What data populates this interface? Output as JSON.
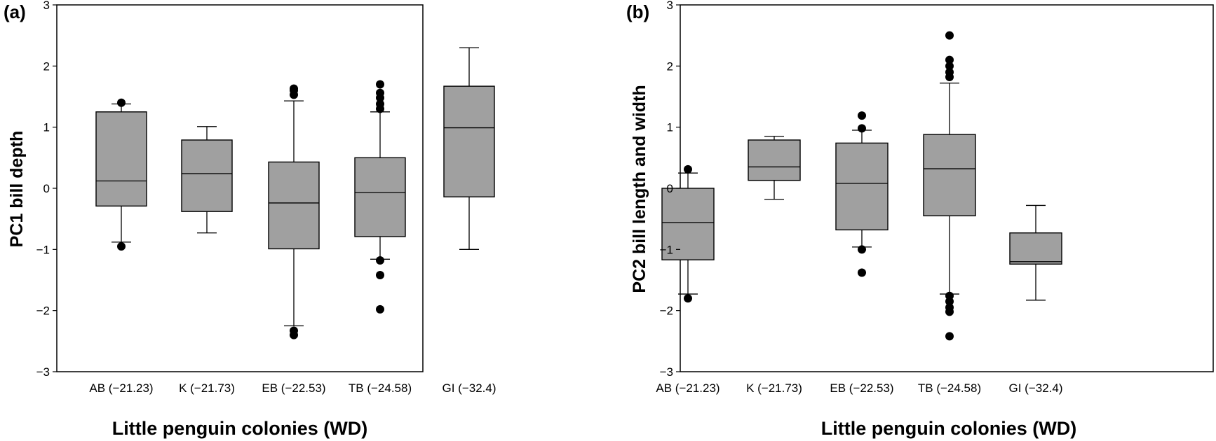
{
  "chart_data": [
    {
      "type": "box",
      "panel_label": "(a)",
      "ylabel": "PC1 bill depth",
      "xlabel": "Little penguin colonies (WD)",
      "ylim": [
        -3,
        3
      ],
      "yticks": [
        "3",
        "2",
        "1",
        "0",
        "−1",
        "−2",
        "−3"
      ],
      "ytick_values": [
        3,
        2,
        1,
        0,
        -1,
        -2,
        -3
      ],
      "categories": [
        "AB (−21.23)",
        "K (−21.73)",
        "EB (−22.53)",
        "TB (−24.58)",
        "GI (−32.4)"
      ],
      "boxes": [
        {
          "whisker_low": -0.88,
          "q1": -0.29,
          "median": 0.12,
          "q3": 1.25,
          "whisker_high": 1.38,
          "outliers": [
            1.4,
            -0.95
          ]
        },
        {
          "whisker_low": -0.73,
          "q1": -0.38,
          "median": 0.24,
          "q3": 0.79,
          "whisker_high": 1.01,
          "outliers": []
        },
        {
          "whisker_low": -2.25,
          "q1": -0.99,
          "median": -0.24,
          "q3": 0.43,
          "whisker_high": 1.43,
          "outliers": [
            1.53,
            1.6,
            1.63,
            -2.33,
            -2.4
          ]
        },
        {
          "whisker_low": -1.16,
          "q1": -0.79,
          "median": -0.07,
          "q3": 0.5,
          "whisker_high": 1.25,
          "outliers": [
            1.3,
            1.38,
            1.48,
            1.56,
            1.7,
            -1.18,
            -1.42,
            -1.98
          ]
        },
        {
          "whisker_low": -1.0,
          "q1": -0.14,
          "median": 0.99,
          "q3": 1.67,
          "whisker_high": 2.3,
          "outliers": []
        }
      ],
      "box_color": "#a0a0a0",
      "grid": false
    },
    {
      "type": "box",
      "panel_label": "(b)",
      "ylabel": "PC2 bill length and width",
      "xlabel": "Little penguin colonies (WD)",
      "ylim": [
        -3,
        3
      ],
      "yticks": [
        "3",
        "2",
        "1",
        "0",
        "−1",
        "−2",
        "−3"
      ],
      "ytick_values": [
        3,
        2,
        1,
        0,
        -1,
        -2,
        -3
      ],
      "categories": [
        "AB (−21.23)",
        "K (−21.73)",
        "EB (−22.53)",
        "TB (−24.58)",
        "GI (−32.4)"
      ],
      "boxes": [
        {
          "whisker_low": -1.73,
          "q1": -1.17,
          "median": -0.56,
          "q3": 0.0,
          "whisker_high": 0.25,
          "outliers": [
            0.31,
            -1.8
          ]
        },
        {
          "whisker_low": -0.18,
          "q1": 0.13,
          "median": 0.35,
          "q3": 0.79,
          "whisker_high": 0.85,
          "outliers": []
        },
        {
          "whisker_low": -0.96,
          "q1": -0.68,
          "median": 0.08,
          "q3": 0.74,
          "whisker_high": 0.95,
          "outliers": [
            0.98,
            1.19,
            -1.0,
            -1.38
          ]
        },
        {
          "whisker_low": -1.73,
          "q1": -0.45,
          "median": 0.32,
          "q3": 0.88,
          "whisker_high": 1.72,
          "outliers": [
            1.82,
            1.9,
            2.0,
            2.1,
            2.5,
            -1.76,
            -1.85,
            -1.95,
            -2.02,
            -2.42
          ]
        },
        {
          "whisker_low": -1.83,
          "q1": -1.24,
          "median": -1.2,
          "q3": -0.73,
          "whisker_high": -0.28,
          "outliers": []
        }
      ],
      "box_color": "#a0a0a0",
      "grid": false
    }
  ]
}
